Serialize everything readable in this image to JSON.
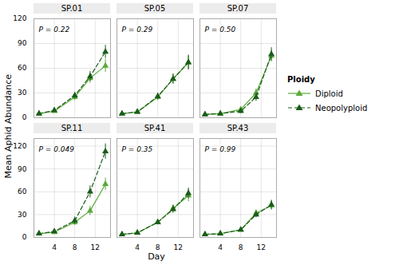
{
  "xlabel": "Day",
  "ylabel": "Mean Aphid Abundance",
  "legend_title": "Ploidy",
  "legend": "right",
  "chart_data": [
    {
      "type": "line",
      "title": "SP.01",
      "annotation": "P = 0.22",
      "x": [
        1,
        4,
        8,
        11,
        14
      ],
      "xlim": [
        0,
        15
      ],
      "xticks": [
        4,
        8,
        12
      ],
      "ylim": [
        0,
        120
      ],
      "yticks": [
        0,
        30,
        60,
        90,
        120
      ],
      "grid": true,
      "tick_labels": "y",
      "series": [
        {
          "name": "Diploid",
          "color": "#5aaa3a",
          "line_style": "solid",
          "marker": "triangle",
          "values": [
            5,
            8,
            25,
            48,
            63
          ],
          "error": [
            1,
            1.5,
            4,
            6,
            8
          ]
        },
        {
          "name": "Neopolyploid",
          "color": "#1a5c1a",
          "line_style": "dashed",
          "marker": "triangle",
          "values": [
            5,
            9,
            27,
            50,
            80
          ],
          "error": [
            1,
            1.5,
            4,
            6,
            8
          ]
        }
      ]
    },
    {
      "type": "line",
      "title": "SP.05",
      "annotation": "P = 0.29",
      "x": [
        1,
        4,
        8,
        11,
        14
      ],
      "xlim": [
        0,
        15
      ],
      "xticks": [
        4,
        8,
        12
      ],
      "ylim": [
        0,
        120
      ],
      "yticks": [
        0,
        30,
        60,
        90,
        120
      ],
      "grid": true,
      "tick_labels": false,
      "series": [
        {
          "name": "Diploid",
          "color": "#5aaa3a",
          "line_style": "solid",
          "marker": "triangle",
          "values": [
            5,
            7,
            25,
            47,
            67
          ],
          "error": [
            1,
            1.5,
            4,
            6,
            8
          ]
        },
        {
          "name": "Neopolyploid",
          "color": "#1a5c1a",
          "line_style": "dashed",
          "marker": "triangle",
          "values": [
            5,
            7,
            26,
            47,
            67
          ],
          "error": [
            1,
            1.5,
            4,
            6,
            9
          ]
        }
      ]
    },
    {
      "type": "line",
      "title": "SP.07",
      "annotation": "P = 0.50",
      "x": [
        1,
        4,
        8,
        11,
        14
      ],
      "xlim": [
        0,
        15
      ],
      "xticks": [
        4,
        8,
        12
      ],
      "ylim": [
        0,
        120
      ],
      "yticks": [
        0,
        30,
        60,
        90,
        120
      ],
      "grid": true,
      "tick_labels": false,
      "series": [
        {
          "name": "Diploid",
          "color": "#5aaa3a",
          "line_style": "solid",
          "marker": "triangle",
          "values": [
            4,
            5,
            10,
            30,
            75
          ],
          "error": [
            0.5,
            1,
            3,
            5,
            7
          ]
        },
        {
          "name": "Neopolyploid",
          "color": "#1a5c1a",
          "line_style": "dashed",
          "marker": "triangle",
          "values": [
            4,
            5,
            8,
            25,
            77
          ],
          "error": [
            0.5,
            1,
            3,
            5,
            8
          ]
        }
      ]
    },
    {
      "type": "line",
      "title": "SP.11",
      "annotation": "P = 0.049",
      "x": [
        1,
        4,
        8,
        11,
        14
      ],
      "xlim": [
        0,
        15
      ],
      "xticks": [
        4,
        8,
        12
      ],
      "ylim": [
        0,
        130
      ],
      "yticks": [
        0,
        30,
        60,
        90,
        120
      ],
      "grid": true,
      "tick_labels": true,
      "series": [
        {
          "name": "Diploid",
          "color": "#5aaa3a",
          "line_style": "solid",
          "marker": "triangle",
          "values": [
            5,
            7,
            20,
            35,
            70
          ],
          "error": [
            1,
            1.5,
            4,
            6,
            8
          ]
        },
        {
          "name": "Neopolyploid",
          "color": "#1a5c1a",
          "line_style": "dashed",
          "marker": "triangle",
          "values": [
            5,
            8,
            22,
            60,
            113
          ],
          "error": [
            1,
            1.5,
            5,
            8,
            10
          ]
        }
      ]
    },
    {
      "type": "line",
      "title": "SP.41",
      "annotation": "P = 0.35",
      "x": [
        1,
        4,
        8,
        11,
        14
      ],
      "xlim": [
        0,
        15
      ],
      "xticks": [
        4,
        8,
        12
      ],
      "ylim": [
        0,
        130
      ],
      "yticks": [
        0,
        30,
        60,
        90,
        120
      ],
      "grid": true,
      "tick_labels": "x",
      "series": [
        {
          "name": "Diploid",
          "color": "#5aaa3a",
          "line_style": "solid",
          "marker": "triangle",
          "values": [
            4,
            6,
            20,
            38,
            55
          ],
          "error": [
            0.5,
            1,
            3,
            5,
            8
          ]
        },
        {
          "name": "Neopolyploid",
          "color": "#1a5c1a",
          "line_style": "dashed",
          "marker": "triangle",
          "values": [
            4,
            6,
            20,
            37,
            58
          ],
          "error": [
            0.5,
            1,
            3,
            5,
            7
          ]
        }
      ]
    },
    {
      "type": "line",
      "title": "SP.43",
      "annotation": "P = 0.99",
      "x": [
        1,
        4,
        8,
        11,
        14
      ],
      "xlim": [
        0,
        15
      ],
      "xticks": [
        4,
        8,
        12
      ],
      "ylim": [
        0,
        130
      ],
      "yticks": [
        0,
        30,
        60,
        90,
        120
      ],
      "grid": true,
      "tick_labels": "x",
      "series": [
        {
          "name": "Diploid",
          "color": "#5aaa3a",
          "line_style": "solid",
          "marker": "triangle",
          "values": [
            4,
            5,
            10,
            32,
            42
          ],
          "error": [
            0.5,
            0.5,
            2,
            4,
            6
          ]
        },
        {
          "name": "Neopolyploid",
          "color": "#1a5c1a",
          "line_style": "dashed",
          "marker": "triangle",
          "values": [
            4,
            5,
            10,
            30,
            43
          ],
          "error": [
            0.5,
            0.5,
            2,
            4,
            6
          ]
        }
      ]
    }
  ]
}
